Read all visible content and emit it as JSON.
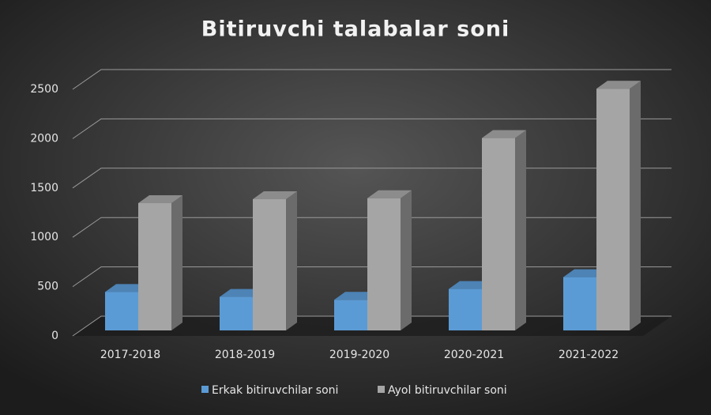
{
  "chart_data": {
    "type": "bar3d",
    "title": "Bitiruvchi talabalar soni",
    "categories": [
      "2017-2018",
      "2018-2019",
      "2019-2020",
      "2020-2021",
      "2021-2022"
    ],
    "series": [
      {
        "name": "Erkak bitiruvchilar soni",
        "color": "#5b9bd5",
        "values": [
          390,
          340,
          310,
          420,
          540
        ]
      },
      {
        "name": "Ayol bitiruvchilar soni",
        "color": "#a5a5a5",
        "values": [
          1290,
          1330,
          1340,
          1950,
          2450
        ]
      }
    ],
    "ylim": [
      0,
      2500
    ],
    "yticks": [
      0,
      500,
      1000,
      1500,
      2000,
      2500
    ],
    "grid": true
  }
}
